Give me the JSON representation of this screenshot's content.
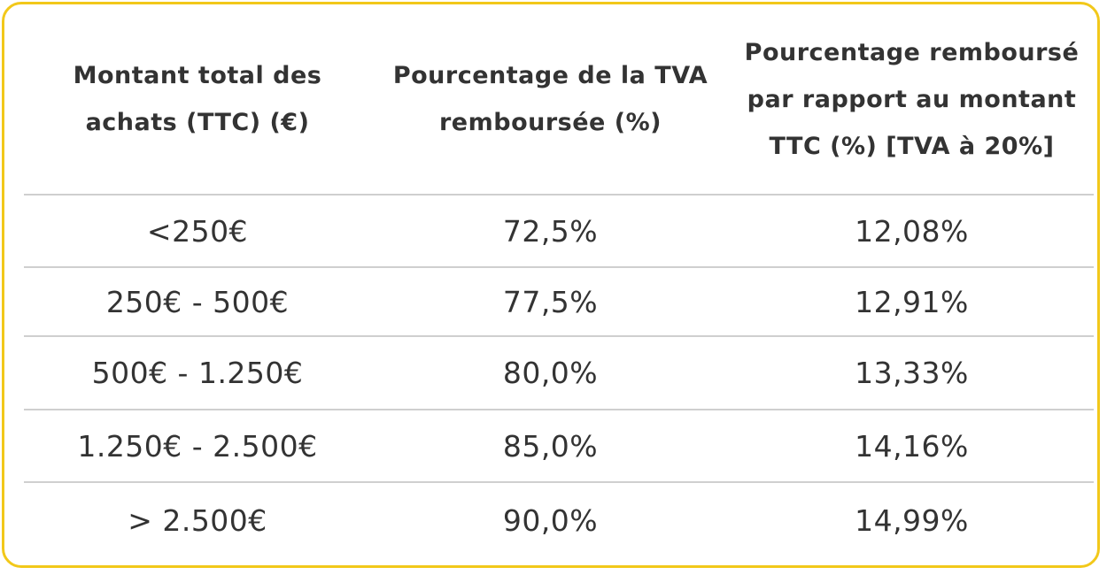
{
  "table": {
    "headers": [
      "Montant total des\nachats (TTC) (€)",
      "Pourcentage de la TVA\nremboursée (%)",
      "Pourcentage remboursé\npar rapport au montant\nTTC (%) [TVA à 20%]"
    ],
    "rows": [
      [
        "<250€",
        "72,5%",
        "12,08%"
      ],
      [
        "250€ - 500€",
        "77,5%",
        "12,91%"
      ],
      [
        "500€ - 1.250€",
        "80,0%",
        "13,33%"
      ],
      [
        "1.250€ - 2.500€",
        "85,0%",
        "14,16%"
      ],
      [
        "> 2.500€",
        "90,0%",
        "14,99%"
      ]
    ]
  },
  "colors": {
    "border_accent": "#f2c81a",
    "divider": "#cfcfcf",
    "text": "#333333"
  }
}
